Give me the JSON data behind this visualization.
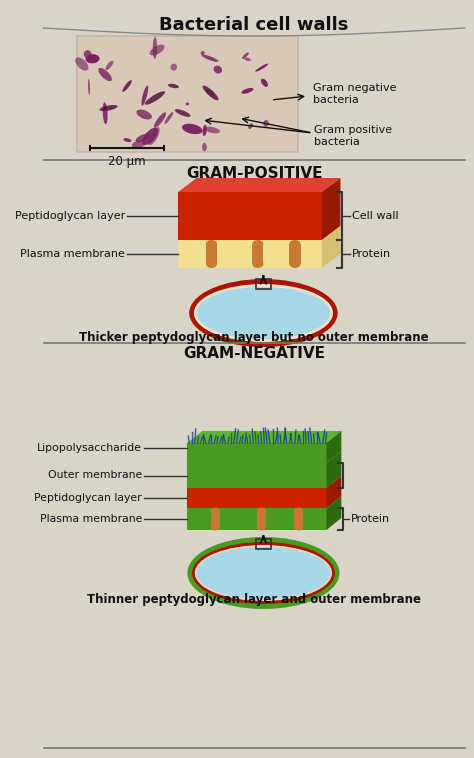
{
  "title": "Bacterial cell walls",
  "bg_color": "#d8d4c8",
  "micro_image_bg": "#e8e0d0",
  "section_divider_color": "#555555",
  "gram_pos_title": "GRAM-POSITIVE",
  "gram_neg_title": "GRAM-NEGATIVE",
  "gram_pos_note": "Thicker peptydoglycan layer but no outer membrane",
  "gram_neg_note": "Thinner peptydoglycan layer and outer membrane",
  "scale_label": "20 μm",
  "labels_gram_pos": {
    "left": [
      "Peptidoglycan layer",
      "Plasma membrane"
    ],
    "right": [
      "Cell wall",
      "Protein"
    ]
  },
  "labels_gram_neg": {
    "left": [
      "Lipopolysaccharide",
      "Outer membrane",
      "Peptidoglycan layer",
      "Plasma membrane"
    ],
    "right": [
      "Protein"
    ]
  },
  "colors": {
    "red_layer": "#cc2200",
    "green_layer": "#4a9a20",
    "orange_brown": "#c87830",
    "cream_layer": "#f5e8a0",
    "light_blue": "#a8d8e8",
    "dark_red": "#aa1500",
    "dark_green": "#2d6b10",
    "bracket_color": "#333333",
    "arrow_color": "#111111",
    "text_color": "#111111",
    "title_color": "#111111",
    "micro_bg": "#ddd0c0"
  }
}
